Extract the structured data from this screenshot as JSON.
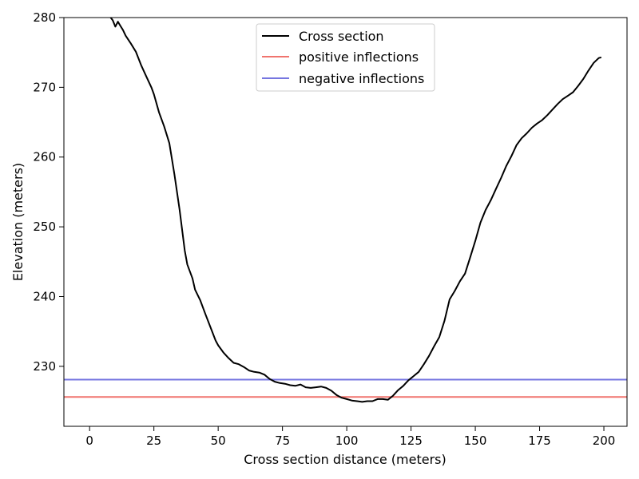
{
  "chart_data": {
    "type": "line",
    "title": "",
    "xlabel": "Cross section distance (meters)",
    "ylabel": "Elevation (meters)",
    "xlim": [
      -10,
      209
    ],
    "ylim": [
      221.4,
      280
    ],
    "xticks": [
      0,
      25,
      50,
      75,
      100,
      125,
      150,
      175,
      200
    ],
    "yticks": [
      230,
      240,
      250,
      260,
      270,
      280
    ],
    "grid": false,
    "legend_position": "top-center",
    "series": [
      {
        "name": "Cross section",
        "color": "#000000",
        "x": [
          8,
          9,
          10,
          11,
          12,
          13,
          14,
          16,
          18,
          20,
          22,
          24,
          25,
          27,
          29,
          31,
          33,
          35,
          37,
          38,
          40,
          41,
          43,
          45,
          47,
          49,
          50,
          52,
          54,
          56,
          58,
          60,
          62,
          64,
          66,
          68,
          70,
          72,
          74,
          76,
          78,
          80,
          82,
          84,
          86,
          88,
          90,
          92,
          94,
          96,
          98,
          100,
          102,
          104,
          106,
          108,
          110,
          112,
          114,
          116,
          118,
          120,
          122,
          124,
          126,
          128,
          130,
          132,
          134,
          136,
          138,
          140,
          142,
          144,
          146,
          148,
          150,
          152,
          154,
          156,
          158,
          160,
          162,
          164,
          166,
          168,
          170,
          172,
          174,
          176,
          178,
          180,
          182,
          184,
          186,
          188,
          190,
          192,
          194,
          196,
          198,
          199
        ],
        "y": [
          280.1,
          279.6,
          278.7,
          279.4,
          278.8,
          278.2,
          277.4,
          276.3,
          275.1,
          273.2,
          271.6,
          270.0,
          269.0,
          266.4,
          264.4,
          262.0,
          257.5,
          252.4,
          246.6,
          244.6,
          242.6,
          241.0,
          239.5,
          237.5,
          235.6,
          233.7,
          233.0,
          232.0,
          231.2,
          230.5,
          230.3,
          229.9,
          229.4,
          229.2,
          229.1,
          228.8,
          228.2,
          227.8,
          227.6,
          227.5,
          227.3,
          227.2,
          227.4,
          227.0,
          226.9,
          227.0,
          227.1,
          226.9,
          226.5,
          225.9,
          225.5,
          225.3,
          225.1,
          225.0,
          224.9,
          225.0,
          225.0,
          225.3,
          225.3,
          225.2,
          225.8,
          226.6,
          227.2,
          228.0,
          228.6,
          229.2,
          230.3,
          231.5,
          232.9,
          234.2,
          236.5,
          239.6,
          240.8,
          242.2,
          243.3,
          245.6,
          248.0,
          250.6,
          252.4,
          253.8,
          255.4,
          257.0,
          258.7,
          260.1,
          261.7,
          262.7,
          263.4,
          264.2,
          264.8,
          265.3,
          266.0,
          266.8,
          267.6,
          268.3,
          268.8,
          269.3,
          270.2,
          271.2,
          272.4,
          273.5,
          274.2,
          274.3
        ]
      },
      {
        "name": "positive inflections",
        "color": "#f0746e",
        "hline": 225.6
      },
      {
        "name": "negative inflections",
        "color": "#7676e0",
        "hline": 228.1
      }
    ]
  }
}
